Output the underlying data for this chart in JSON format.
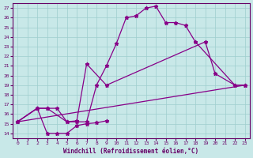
{
  "bg_color": "#c8e8e8",
  "line_color": "#880088",
  "xlabel": "Windchill (Refroidissement éolien,°C)",
  "xlim": [
    -0.5,
    23.5
  ],
  "ylim": [
    13.5,
    27.5
  ],
  "yticks": [
    14,
    15,
    16,
    17,
    18,
    19,
    20,
    21,
    22,
    23,
    24,
    25,
    26,
    27
  ],
  "xticks": [
    0,
    1,
    2,
    3,
    4,
    5,
    6,
    7,
    8,
    9,
    10,
    11,
    12,
    13,
    14,
    15,
    16,
    17,
    18,
    19,
    20,
    21,
    22,
    23
  ],
  "series": [
    {
      "x": [
        0,
        2,
        3,
        4,
        5,
        6,
        7,
        8,
        9,
        10,
        11,
        12,
        13,
        14,
        15,
        16,
        17,
        18,
        22,
        23
      ],
      "y": [
        15.2,
        16.6,
        16.6,
        16.6,
        15.2,
        15.2,
        15.2,
        19.0,
        21.0,
        23.3,
        26.0,
        26.2,
        27.0,
        27.2,
        25.5,
        25.5,
        25.2,
        23.5,
        19.0,
        19.0
      ]
    },
    {
      "x": [
        0,
        2,
        3,
        4,
        5,
        6,
        7,
        8,
        9
      ],
      "y": [
        15.2,
        16.6,
        14.0,
        14.0,
        14.0,
        14.8,
        15.0,
        15.1,
        15.3
      ]
    },
    {
      "x": [
        0,
        2,
        3,
        5,
        6,
        7,
        9,
        19,
        20,
        22,
        23
      ],
      "y": [
        15.2,
        16.6,
        16.6,
        15.2,
        15.3,
        21.2,
        19.0,
        23.5,
        20.2,
        19.0,
        19.0
      ]
    },
    {
      "x": [
        0,
        23
      ],
      "y": [
        15.2,
        19.0
      ]
    }
  ]
}
